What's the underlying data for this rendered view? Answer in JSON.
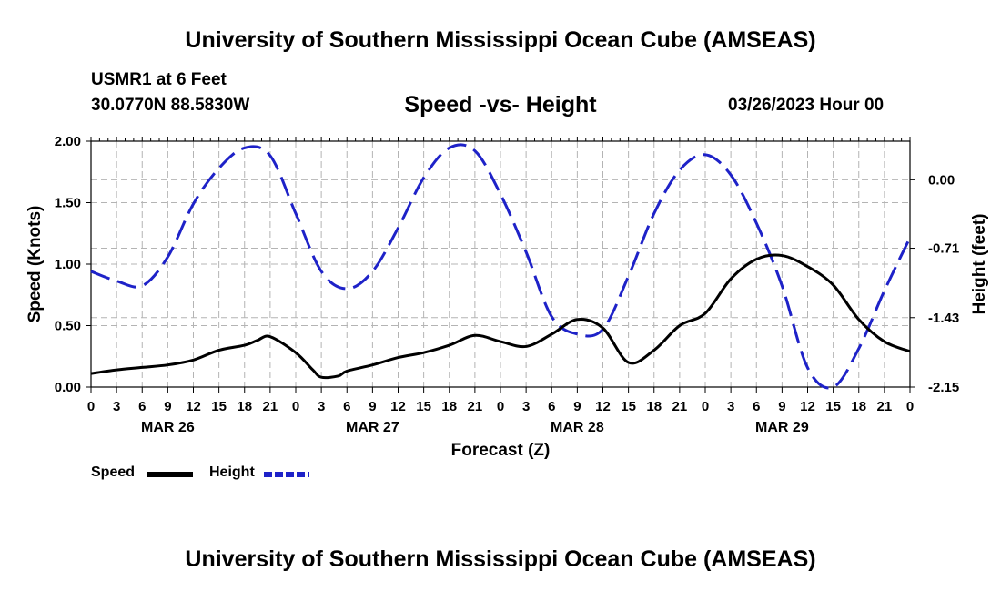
{
  "header": {
    "title": "University of Southern Mississippi Ocean Cube (AMSEAS)",
    "station": "USMR1 at 6 Feet",
    "coords": "30.0770N  88.5830W",
    "subtitle": "Speed -vs- Height",
    "datetime": "03/26/2023 Hour 00"
  },
  "footer": {
    "title": "University of Southern Mississippi Ocean Cube (AMSEAS)"
  },
  "legend": {
    "speed_label": "Speed",
    "height_label": "Height"
  },
  "chart_data": {
    "type": "line",
    "title": "Speed -vs- Height",
    "xlabel": "Forecast (Z)",
    "ylabel_left": "Speed (Knots)",
    "ylabel_right": "Height (feet)",
    "x_unit": "hours since 03/26/2023 00Z",
    "xlim": [
      0,
      96
    ],
    "ylim_left": [
      0,
      2.0
    ],
    "ylim_right": [
      -2.15,
      0.4
    ],
    "x_tick_labels": [
      "0",
      "3",
      "6",
      "9",
      "12",
      "15",
      "18",
      "21",
      "0",
      "3",
      "6",
      "9",
      "12",
      "15",
      "18",
      "21",
      "0",
      "3",
      "6",
      "9",
      "12",
      "15",
      "18",
      "21",
      "0",
      "3",
      "6",
      "9",
      "12",
      "15",
      "18",
      "21",
      "0"
    ],
    "day_labels": [
      {
        "x": 9,
        "label": "MAR 26"
      },
      {
        "x": 33,
        "label": "MAR 27"
      },
      {
        "x": 57,
        "label": "MAR 28"
      },
      {
        "x": 81,
        "label": "MAR 29"
      }
    ],
    "y_left_ticks": [
      {
        "v": 0.0,
        "label": "0.00"
      },
      {
        "v": 0.5,
        "label": "0.50"
      },
      {
        "v": 1.0,
        "label": "1.00"
      },
      {
        "v": 1.5,
        "label": "1.50"
      },
      {
        "v": 2.0,
        "label": "2.00"
      }
    ],
    "y_right_ticks": [
      {
        "v": 0.0,
        "label": "0.00"
      },
      {
        "v": -0.71,
        "label": "-0.71"
      },
      {
        "v": -1.43,
        "label": "-1.43"
      },
      {
        "v": -2.15,
        "label": "-2.15"
      }
    ],
    "series": [
      {
        "name": "Speed",
        "axis": "left",
        "color": "#000000",
        "x": [
          0,
          3,
          6,
          9,
          12,
          15,
          18,
          19.5,
          21,
          24,
          26,
          27,
          29,
          30,
          33,
          36,
          39,
          42,
          45,
          48,
          51,
          54,
          57,
          60,
          63,
          66,
          69,
          72,
          75,
          78,
          81,
          84,
          87,
          90,
          93,
          96
        ],
        "values": [
          0.11,
          0.14,
          0.16,
          0.18,
          0.22,
          0.3,
          0.34,
          0.38,
          0.41,
          0.28,
          0.14,
          0.08,
          0.09,
          0.13,
          0.18,
          0.24,
          0.28,
          0.34,
          0.42,
          0.37,
          0.33,
          0.43,
          0.55,
          0.48,
          0.2,
          0.3,
          0.5,
          0.6,
          0.88,
          1.04,
          1.07,
          0.98,
          0.83,
          0.55,
          0.37,
          0.29
        ]
      },
      {
        "name": "Height",
        "axis": "right",
        "color": "#1e22c8",
        "x": [
          0,
          3,
          6,
          9,
          12,
          15,
          18,
          21,
          24,
          27,
          30,
          33,
          36,
          39,
          42,
          45,
          48,
          51,
          54,
          57,
          60,
          63,
          66,
          69,
          72,
          75,
          78,
          81,
          84,
          87,
          90,
          93,
          96
        ],
        "values": [
          -0.95,
          -1.05,
          -1.1,
          -0.8,
          -0.25,
          0.12,
          0.33,
          0.25,
          -0.35,
          -0.95,
          -1.13,
          -0.95,
          -0.5,
          0.02,
          0.33,
          0.3,
          -0.15,
          -0.75,
          -1.42,
          -1.6,
          -1.55,
          -1.0,
          -0.35,
          0.1,
          0.26,
          0.05,
          -0.45,
          -1.1,
          -1.95,
          -2.2,
          -1.75,
          -1.15,
          -0.6
        ]
      }
    ]
  }
}
